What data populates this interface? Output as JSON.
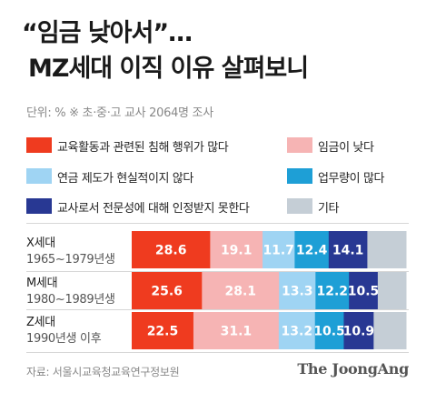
{
  "title_line1": "“임금 낮아서”…",
  "title_line2": "MZ세대 이직 이유 살펴보니",
  "unit_note": "단위: %  ※ 초·중·고 교사 2064명 조사",
  "source": "자료: 서울시교육청교육연구정보원",
  "brand": "The JoongAng",
  "colors": {
    "series": [
      "#ef3b1f",
      "#f6b4b4",
      "#9fd4f3",
      "#1e9fd6",
      "#283893",
      "#c5ced6"
    ],
    "divider": "#d6d6d6"
  },
  "chart_data": {
    "type": "bar",
    "orientation": "horizontal",
    "stacked": true,
    "xlim": [
      0,
      100
    ],
    "categories": [
      {
        "generation": "X세대",
        "years": "1965~1979년생"
      },
      {
        "generation": "M세대",
        "years": "1980~1989년생"
      },
      {
        "generation": "Z세대",
        "years": "1990년생 이후"
      }
    ],
    "series": [
      {
        "name": "교육활동과 관련된 침해 행위가 많다",
        "values": [
          28.6,
          25.6,
          22.5
        ],
        "label_color": "#ffffff"
      },
      {
        "name": "임금이 낮다",
        "values": [
          19.1,
          28.1,
          31.1
        ],
        "label_color": "#ffffff"
      },
      {
        "name": "연금 제도가 현실적이지 않다",
        "values": [
          11.7,
          13.3,
          13.2
        ],
        "label_color": "#ffffff"
      },
      {
        "name": "업무량이 많다",
        "values": [
          12.4,
          12.2,
          10.5
        ],
        "label_color": "#ffffff"
      },
      {
        "name": "교사로서 전문성에 대해 인정받지 못한다",
        "values": [
          14.1,
          10.5,
          10.9
        ],
        "label_color": "#ffffff"
      },
      {
        "name": "기타",
        "values": [
          14.1,
          10.3,
          11.8
        ],
        "label_color": "#ffffff"
      }
    ],
    "data_labels": [
      [
        "28.6",
        "19.1",
        "11.7",
        "12.4",
        "14.1",
        ""
      ],
      [
        "25.6",
        "28.1",
        "13.3",
        "12.2",
        "10.5",
        ""
      ],
      [
        "22.5",
        "31.1",
        "13.2",
        "10.5",
        "10.9",
        ""
      ]
    ]
  }
}
